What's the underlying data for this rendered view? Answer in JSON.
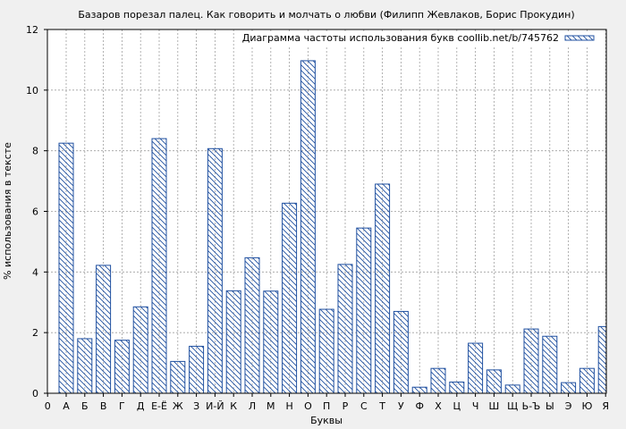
{
  "chart_data": {
    "type": "bar",
    "title": "Базаров порезал палец. Как говорить и молчать о любви (Филипп Жевлаков, Борис Прокудин)",
    "xlabel": "Буквы",
    "ylabel": "% использования в тексте",
    "legend": {
      "label": "Диаграмма частоты использования букв coollib.net/b/745762",
      "placement": "top-right"
    },
    "x_tick_first": "0",
    "categories": [
      "А",
      "Б",
      "В",
      "Г",
      "Д",
      "Е-Ё",
      "Ж",
      "З",
      "И-Й",
      "К",
      "Л",
      "М",
      "Н",
      "О",
      "П",
      "Р",
      "С",
      "Т",
      "У",
      "Ф",
      "Х",
      "Ц",
      "Ч",
      "Ш",
      "Щ",
      "Ь-Ъ",
      "Ы",
      "Э",
      "Ю",
      "Я"
    ],
    "values": [
      8.25,
      1.8,
      4.22,
      1.75,
      2.85,
      8.4,
      1.05,
      1.55,
      8.07,
      3.38,
      4.47,
      3.37,
      6.27,
      10.97,
      2.77,
      4.25,
      5.45,
      6.9,
      2.7,
      0.2,
      0.82,
      0.37,
      1.65,
      0.77,
      0.27,
      2.12,
      1.88,
      0.35,
      0.82,
      2.2
    ],
    "y_ticks": [
      0,
      2,
      4,
      6,
      8,
      10,
      12
    ],
    "ylim": [
      0,
      12
    ],
    "grid": true,
    "bar_color": "#2050a0",
    "background": "#f0f0f0",
    "plot_background": "#ffffff"
  }
}
